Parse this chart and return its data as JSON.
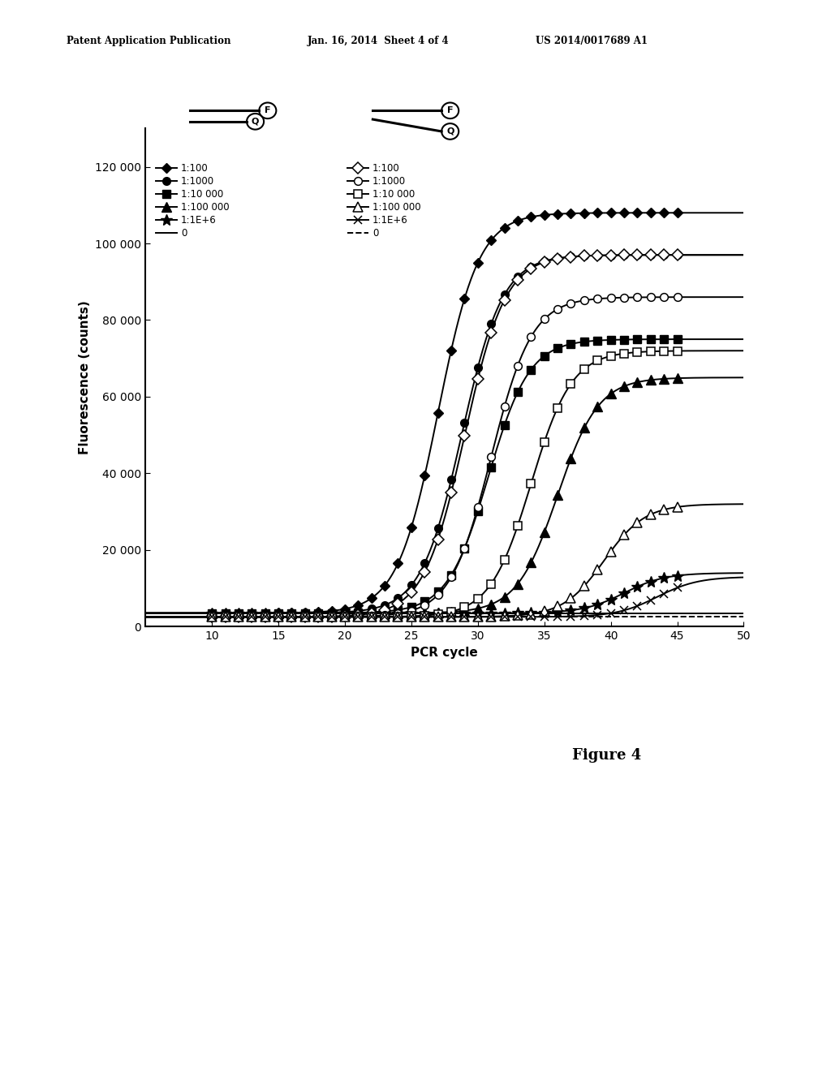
{
  "title": "",
  "xlabel": "PCR cycle",
  "ylabel": "Fluorescence (counts)",
  "xlim": [
    5,
    50
  ],
  "ylim": [
    0,
    130000
  ],
  "xticks": [
    10,
    15,
    20,
    25,
    30,
    35,
    40,
    45,
    50
  ],
  "yticks": [
    0,
    20000,
    40000,
    60000,
    80000,
    100000,
    120000
  ],
  "ytick_labels": [
    "0",
    "20 000",
    "40 000",
    "60 000",
    "80 000",
    "100 000",
    "120 000"
  ],
  "header_text_left": "Patent Application Publication",
  "header_text_mid": "Jan. 16, 2014  Sheet 4 of 4",
  "header_text_right": "US 2014/0017689 A1",
  "figure_label": "Figure 4",
  "group1_series": [
    {
      "label": "1:100",
      "midpoint": 27.0,
      "plateau": 108000,
      "slope": 0.65,
      "baseline": 3500,
      "marker": "D"
    },
    {
      "label": "1:1000",
      "midpoint": 28.8,
      "plateau": 97000,
      "slope": 0.65,
      "baseline": 3500,
      "marker": "o"
    },
    {
      "label": "1:10 000",
      "midpoint": 30.8,
      "plateau": 75000,
      "slope": 0.65,
      "baseline": 3500,
      "marker": "s"
    },
    {
      "label": "1:100 000",
      "midpoint": 36.0,
      "plateau": 65000,
      "slope": 0.65,
      "baseline": 3500,
      "marker": "^"
    },
    {
      "label": "1:1E+6",
      "midpoint": 41.0,
      "plateau": 14000,
      "slope": 0.65,
      "baseline": 3500,
      "marker": "*"
    },
    {
      "label": "0",
      "midpoint": 99.0,
      "plateau": 5500,
      "slope": 0.65,
      "baseline": 3500,
      "marker": "none"
    }
  ],
  "group2_series": [
    {
      "label": "1:100",
      "midpoint": 29.0,
      "plateau": 97000,
      "slope": 0.65,
      "baseline": 2500,
      "marker": "D"
    },
    {
      "label": "1:1000",
      "midpoint": 31.0,
      "plateau": 86000,
      "slope": 0.65,
      "baseline": 2500,
      "marker": "o"
    },
    {
      "label": "1:10 000",
      "midpoint": 34.0,
      "plateau": 72000,
      "slope": 0.65,
      "baseline": 2500,
      "marker": "s"
    },
    {
      "label": "1:100 000",
      "midpoint": 39.5,
      "plateau": 32000,
      "slope": 0.65,
      "baseline": 2500,
      "marker": "^"
    },
    {
      "label": "1:1E+6",
      "midpoint": 43.5,
      "plateau": 13000,
      "slope": 0.65,
      "baseline": 2500,
      "marker": "x"
    },
    {
      "label": "0",
      "midpoint": 99.0,
      "plateau": 3500,
      "slope": 0.65,
      "baseline": 2500,
      "marker": "none",
      "dashed": true
    }
  ],
  "g1_marker_sizes": [
    6,
    7,
    7,
    8,
    10,
    6
  ],
  "g2_marker_sizes": [
    7,
    7,
    7,
    8,
    7,
    6
  ],
  "background_color": "#ffffff"
}
